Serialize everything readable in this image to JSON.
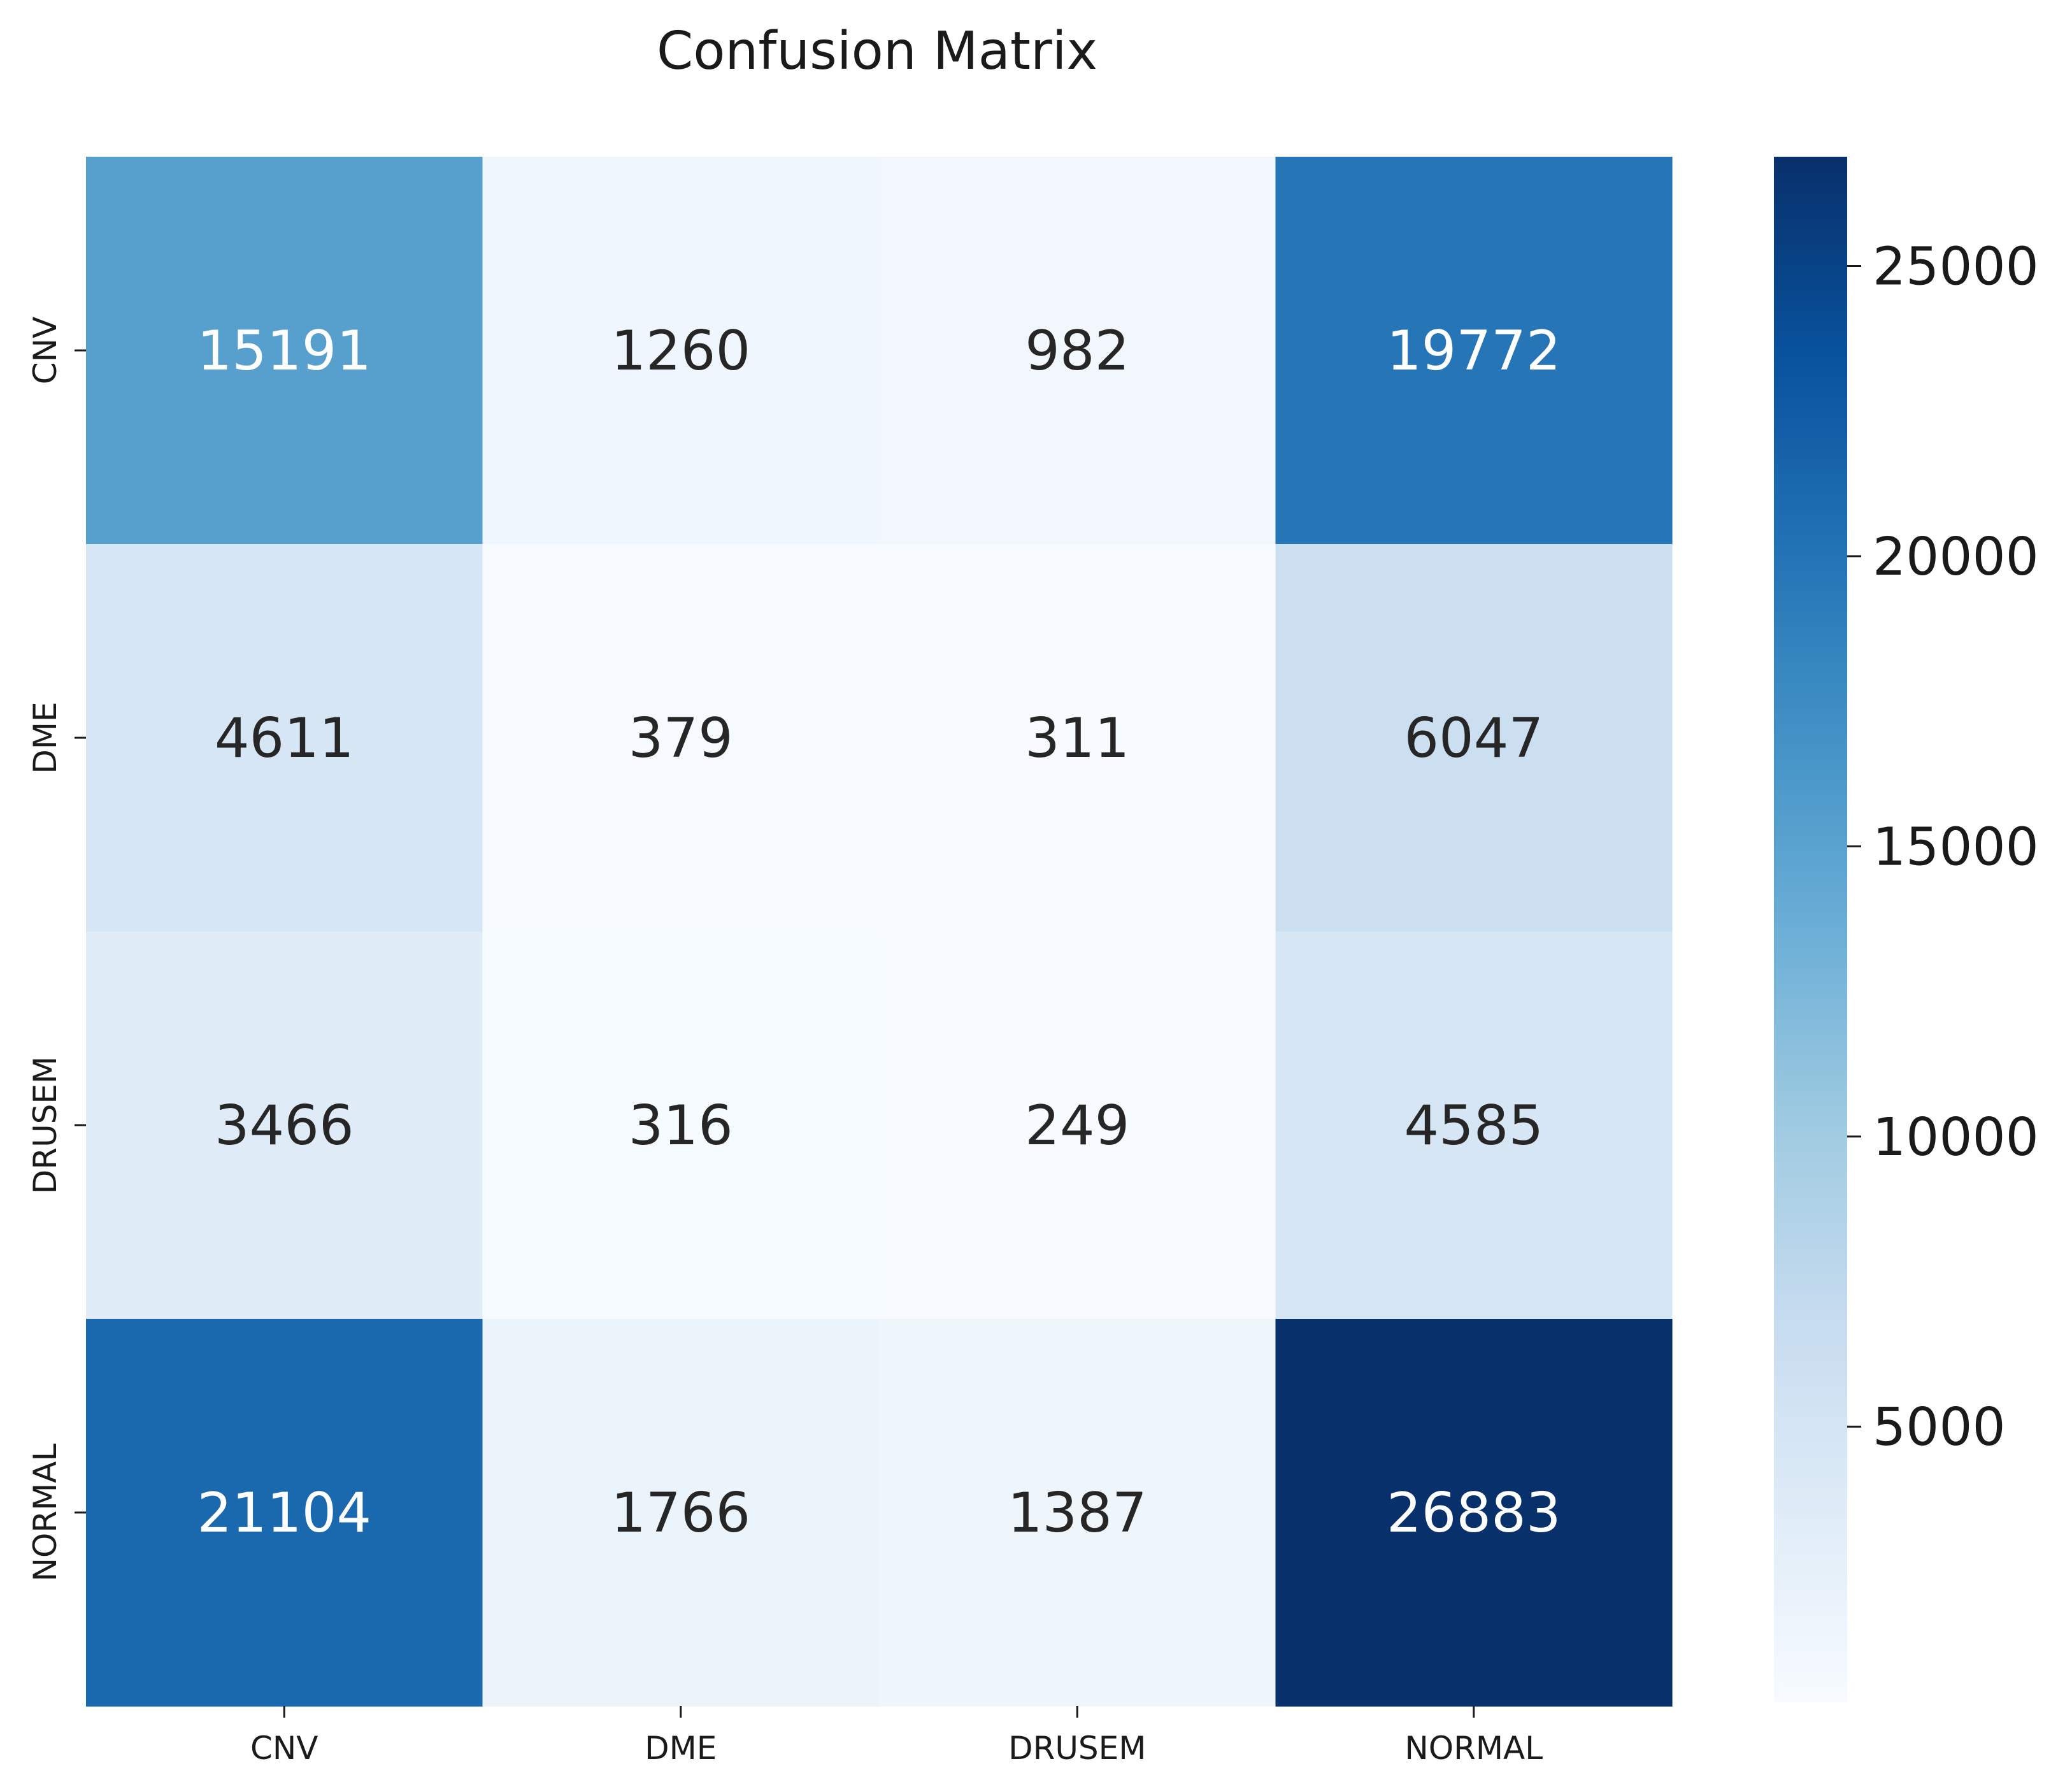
{
  "chart_data": {
    "type": "heatmap",
    "title": "Confusion Matrix",
    "xlabel": "",
    "ylabel": "",
    "x_categories": [
      "CNV",
      "DME",
      "DRUSEM",
      "NORMAL"
    ],
    "y_categories": [
      "CNV",
      "DME",
      "DRUSEM",
      "NORMAL"
    ],
    "values": [
      [
        15191,
        1260,
        982,
        19772
      ],
      [
        4611,
        379,
        311,
        6047
      ],
      [
        3466,
        316,
        249,
        4585
      ],
      [
        21104,
        1766,
        1387,
        26883
      ]
    ],
    "annotations": [
      [
        "15191",
        "1260",
        "982",
        "19772"
      ],
      [
        "4611",
        "379",
        "311",
        "6047"
      ],
      [
        "3466",
        "316",
        "249",
        "4585"
      ],
      [
        "21104",
        "1766",
        "1387",
        "26883"
      ]
    ],
    "colormap": "Blues",
    "color_range": [
      249,
      26883
    ],
    "colorbar_ticks": [
      5000,
      10000,
      15000,
      20000,
      25000
    ],
    "colorbar_tick_labels": [
      "5000",
      "10000",
      "15000",
      "20000",
      "25000"
    ],
    "annotation_colors": {
      "dark_text": "#262626",
      "light_text": "#ffffff"
    },
    "grid": false
  }
}
